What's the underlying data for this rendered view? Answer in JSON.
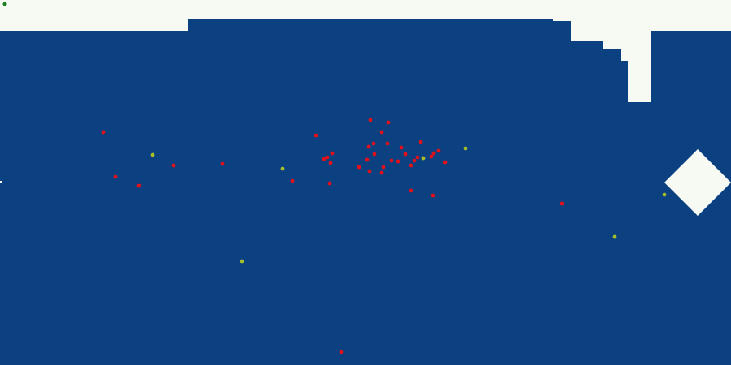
{
  "colors": {
    "water": "#0b4081",
    "wall": "#f7faf2",
    "player": "#1a7f1f",
    "enemy": "#e0111b",
    "pickup": "#a8bd2c"
  },
  "icons": {
    "player": "green-dot",
    "enemy": "red-dot",
    "pickup": "yellow-dot",
    "diamond": "white-diamond-block"
  }
}
